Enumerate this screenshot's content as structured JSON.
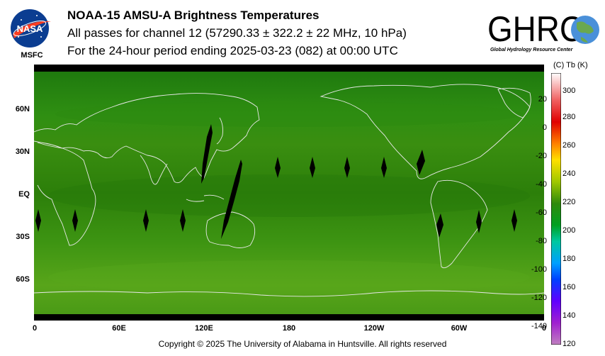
{
  "header": {
    "title": "NOAA-15 AMSU-A Brightness Temperatures",
    "subtitle": "All passes for channel 12 (57290.33 ± 322.2 ± 22 MHz, 10 hPa)",
    "period": "For the 24-hour period ending 2025-03-23 (082) at 00:00 UTC"
  },
  "logos": {
    "nasa_text": "NASA",
    "msfc_text": "MSFC",
    "ghrc_text": "GHRC",
    "ghrc_subtitle": "Global Hydrology Resource Center"
  },
  "map": {
    "lat_labels": [
      "60N",
      "30N",
      "EQ",
      "30S",
      "60S"
    ],
    "lon_labels": [
      "0",
      "60E",
      "120E",
      "180",
      "120W",
      "60W",
      "0"
    ],
    "background_color": "#2f8a0c"
  },
  "colorbar": {
    "units_label": "(C)  Tb  (K)",
    "celsius_ticks": [
      "20",
      "0",
      "-20",
      "-40",
      "-60",
      "-80",
      "-100",
      "-120",
      "-140"
    ],
    "kelvin_ticks": [
      "300",
      "280",
      "260",
      "240",
      "220",
      "200",
      "180",
      "160",
      "140",
      "120"
    ]
  },
  "footer": {
    "copyright": "Copyright © 2025 The University of Alabama in Huntsville.  All rights reserved"
  }
}
